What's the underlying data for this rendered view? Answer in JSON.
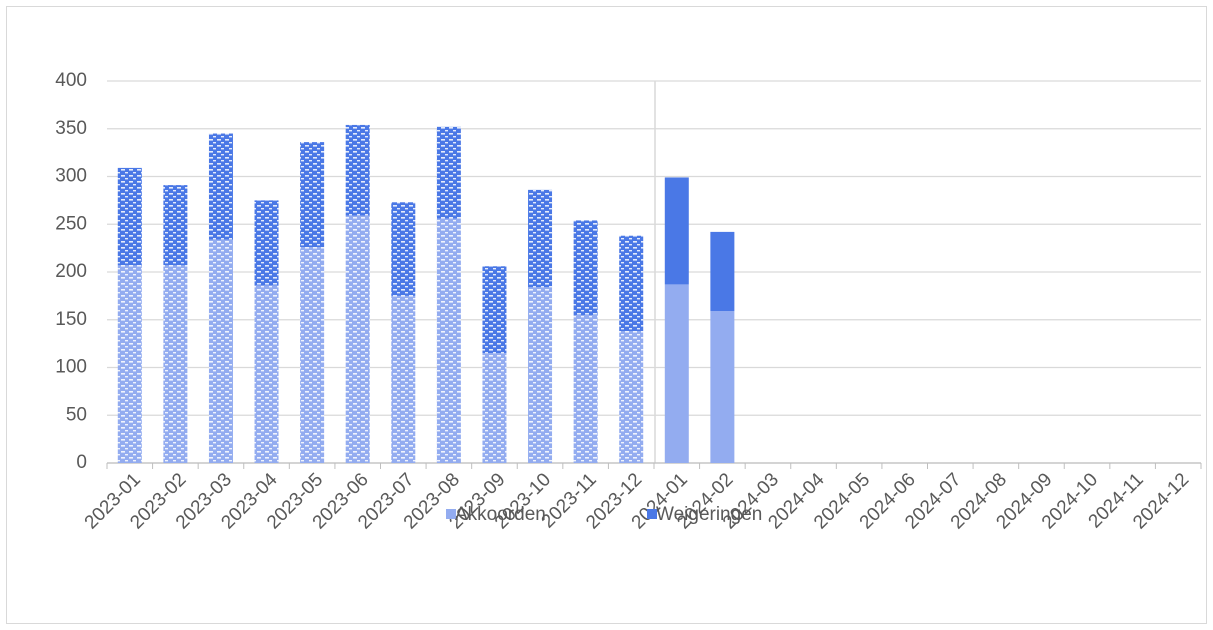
{
  "chart_data": {
    "type": "stacked_bar",
    "categories": [
      "2023-01",
      "2023-02",
      "2023-03",
      "2023-04",
      "2023-05",
      "2023-06",
      "2023-07",
      "2023-08",
      "2023-09",
      "2023-10",
      "2023-11",
      "2023-12",
      "2024-01",
      "2024-02",
      "2024-03",
      "2024-04",
      "2024-05",
      "2024-06",
      "2024-07",
      "2024-08",
      "2024-09",
      "2024-10",
      "2024-11",
      "2024-12"
    ],
    "series": [
      {
        "name": "Akkoorden",
        "color": "#93acf0",
        "values": [
          207,
          207,
          234,
          186,
          226,
          259,
          175,
          256,
          115,
          184,
          155,
          138,
          187,
          159,
          null,
          null,
          null,
          null,
          null,
          null,
          null,
          null,
          null,
          null
        ]
      },
      {
        "name": "Weigeringen",
        "color": "#4a78e6",
        "values": [
          102,
          84,
          111,
          89,
          110,
          95,
          98,
          96,
          91,
          102,
          99,
          100,
          112,
          83,
          null,
          null,
          null,
          null,
          null,
          null,
          null,
          null,
          null,
          null
        ]
      }
    ],
    "ylim": [
      0,
      400
    ],
    "yticks": [
      0,
      50,
      100,
      150,
      200,
      250,
      300,
      350,
      400
    ],
    "grid": true,
    "legend": "bottom",
    "pattern_count": 12
  }
}
